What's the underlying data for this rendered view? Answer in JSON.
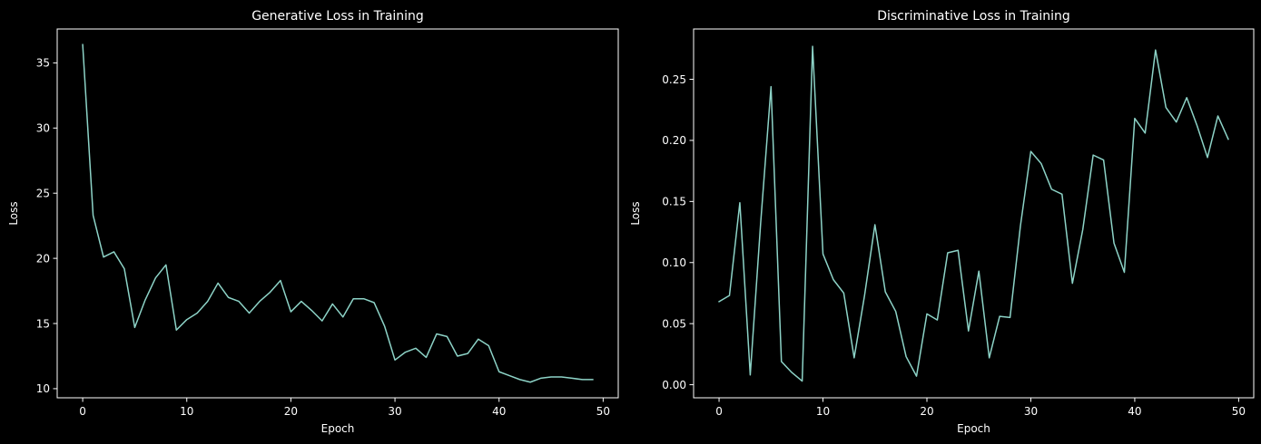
{
  "chart_data": [
    {
      "type": "line",
      "title": "Generative Loss in Training",
      "xlabel": "Epoch",
      "ylabel": "Loss",
      "xlim": [
        -2.45,
        51.45
      ],
      "ylim": [
        9.3,
        37.6
      ],
      "xticks": [
        0,
        10,
        20,
        30,
        40,
        50
      ],
      "yticks": [
        10,
        15,
        20,
        25,
        30,
        35
      ],
      "ytick_labels": [
        "10",
        "15",
        "20",
        "25",
        "30",
        "35"
      ],
      "grid": false,
      "line_color": "#8dd3c7",
      "series": [
        {
          "x": [
            0,
            1,
            2,
            3,
            4,
            5,
            6,
            7,
            8,
            9,
            10,
            11,
            12,
            13,
            14,
            15,
            16,
            17,
            18,
            19,
            20,
            21,
            22,
            23,
            24,
            25,
            26,
            27,
            28,
            29,
            30,
            31,
            32,
            33,
            34,
            35,
            36,
            37,
            38,
            39,
            40,
            41,
            42,
            43,
            44,
            45,
            46,
            47,
            48,
            49
          ],
          "values": [
            36.4,
            23.3,
            20.1,
            20.5,
            19.2,
            14.7,
            16.8,
            18.5,
            19.5,
            14.5,
            15.3,
            15.8,
            16.7,
            18.1,
            17.0,
            16.7,
            15.8,
            16.7,
            17.4,
            18.3,
            15.9,
            16.7,
            16.0,
            15.2,
            16.5,
            15.5,
            16.9,
            16.9,
            16.6,
            14.8,
            12.2,
            12.8,
            13.1,
            12.4,
            14.2,
            14.0,
            12.5,
            12.7,
            13.8,
            13.3,
            11.3,
            11.0,
            10.7,
            10.5,
            10.8,
            10.9,
            10.9,
            10.8,
            10.7,
            10.7
          ]
        }
      ]
    },
    {
      "type": "line",
      "title": "Discriminative Loss in Training",
      "xlabel": "Epoch",
      "ylabel": "Loss",
      "xlim": [
        -2.45,
        51.45
      ],
      "ylim": [
        -0.0107,
        0.2912
      ],
      "xticks": [
        0,
        10,
        20,
        30,
        40,
        50
      ],
      "yticks": [
        0,
        0.05,
        0.1,
        0.15,
        0.2,
        0.25
      ],
      "ytick_labels": [
        "0.00",
        "0.05",
        "0.10",
        "0.15",
        "0.20",
        "0.25"
      ],
      "grid": false,
      "line_color": "#8dd3c7",
      "series": [
        {
          "x": [
            0,
            1,
            2,
            3,
            4,
            5,
            6,
            7,
            8,
            9,
            10,
            11,
            12,
            13,
            14,
            15,
            16,
            17,
            18,
            19,
            20,
            21,
            22,
            23,
            24,
            25,
            26,
            27,
            28,
            29,
            30,
            31,
            32,
            33,
            34,
            35,
            36,
            37,
            38,
            39,
            40,
            41,
            42,
            43,
            44,
            45,
            46,
            47,
            48,
            49
          ],
          "values": [
            0.068,
            0.073,
            0.149,
            0.008,
            0.132,
            0.244,
            0.019,
            0.01,
            0.003,
            0.277,
            0.107,
            0.086,
            0.075,
            0.022,
            0.073,
            0.131,
            0.076,
            0.06,
            0.023,
            0.007,
            0.058,
            0.053,
            0.108,
            0.11,
            0.044,
            0.093,
            0.022,
            0.056,
            0.055,
            0.13,
            0.191,
            0.181,
            0.16,
            0.156,
            0.083,
            0.127,
            0.188,
            0.184,
            0.116,
            0.092,
            0.218,
            0.206,
            0.274,
            0.227,
            0.215,
            0.235,
            0.212,
            0.186,
            0.22,
            0.201
          ]
        }
      ]
    }
  ]
}
